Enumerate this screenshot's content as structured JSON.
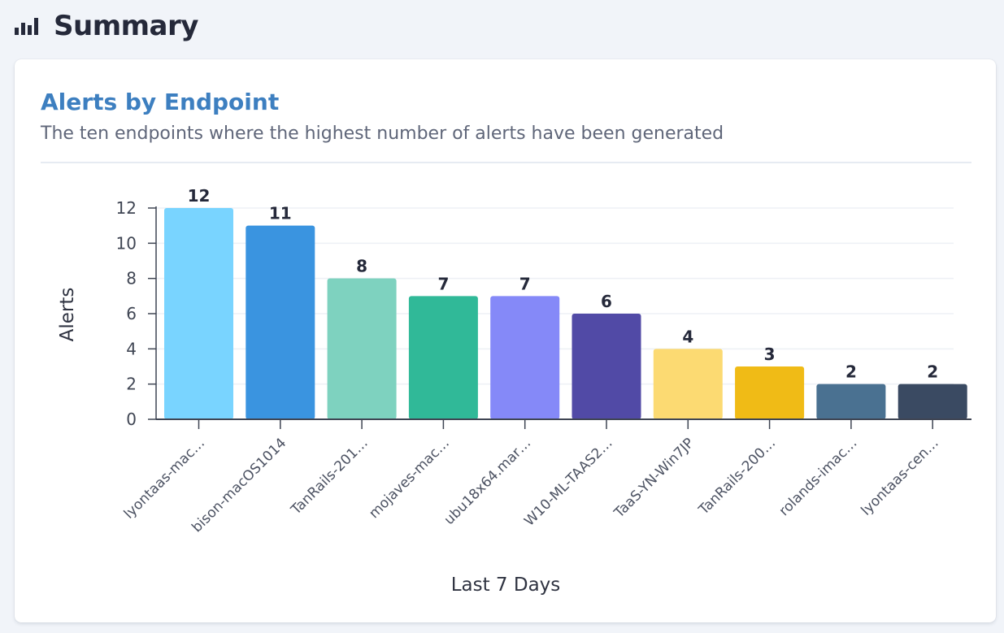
{
  "header": {
    "title": "Summary",
    "icon": "bar-chart-icon"
  },
  "card": {
    "title": "Alerts by Endpoint",
    "subtitle": "The ten endpoints where the highest number of alerts have been generated"
  },
  "chart_data": {
    "type": "bar",
    "categories": [
      "lyontaas-mac…",
      "bison-macOS1014",
      "TanRails-201…",
      "mojaves-mac…",
      "ubu18x64.mar…",
      "W10-ML-TAAS2…",
      "TaaS-YN-Win7JP",
      "TanRails-200…",
      "rolands-imac…",
      "lyontaas-cen…"
    ],
    "values": [
      12,
      11,
      8,
      7,
      7,
      6,
      4,
      3,
      2,
      2
    ],
    "colors": [
      "#79d4ff",
      "#3a94e0",
      "#7ed2bf",
      "#30b998",
      "#8589f8",
      "#514aa6",
      "#fcda72",
      "#f0bb16",
      "#4a7191",
      "#3a4a62"
    ],
    "xlabel": "Last 7 Days",
    "ylabel": "Alerts",
    "ylim": [
      0,
      12
    ],
    "yticks": [
      0,
      2,
      4,
      6,
      8,
      10,
      12
    ],
    "grid": true,
    "legend": "none"
  }
}
